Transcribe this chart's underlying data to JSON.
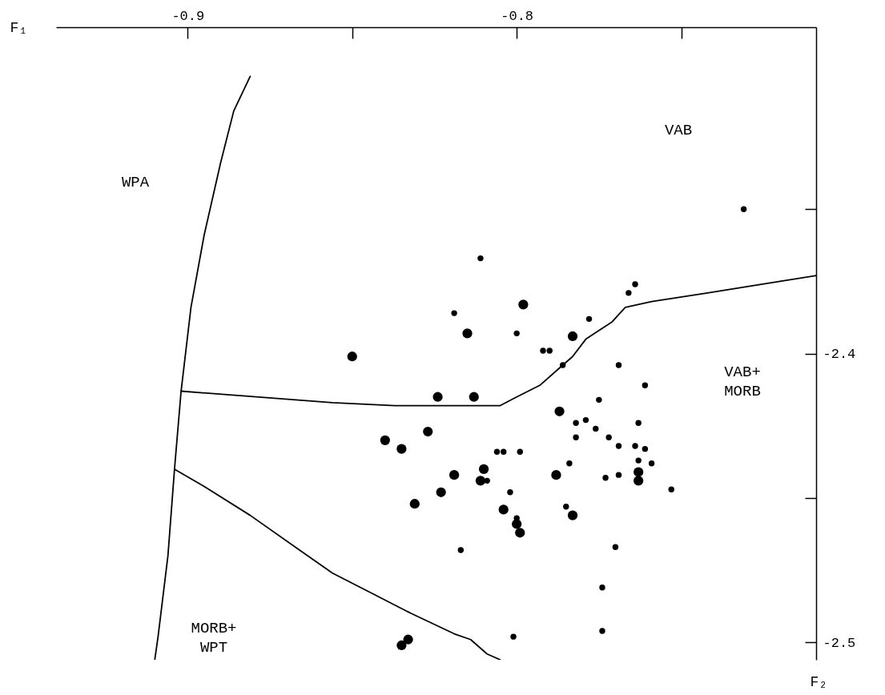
{
  "chart_data": {
    "type": "scatter",
    "xlabel": "F₁",
    "ylabel": "F₂",
    "xlim": [
      -0.94,
      -0.709
    ],
    "ylim": [
      -2.506,
      -2.287
    ],
    "xticks": [
      -0.9,
      {
        "value": -0.85,
        "label": null
      },
      -0.8,
      {
        "value": -0.75,
        "label": null
      }
    ],
    "yticks": [
      {
        "value": -2.35,
        "label": null
      },
      -2.4,
      {
        "value": -2.45,
        "label": null
      },
      -2.5
    ],
    "grid": false,
    "series": [
      {
        "color": "#000000",
        "marker": "circle",
        "x": [
          -0.811,
          -0.819,
          -0.8,
          -0.792,
          -0.79,
          -0.778,
          -0.764,
          -0.766,
          -0.786,
          -0.769,
          -0.761,
          -0.775,
          -0.782,
          -0.779,
          -0.763,
          -0.776,
          -0.782,
          -0.772,
          -0.769,
          -0.764,
          -0.761,
          -0.763,
          -0.759,
          -0.784,
          -0.773,
          -0.769,
          -0.753,
          -0.806,
          -0.804,
          -0.799,
          -0.809,
          -0.802,
          -0.8,
          -0.785,
          -0.817,
          -0.77,
          -0.774,
          -0.774,
          -0.801,
          -0.731
        ],
        "values": [
          -2.367,
          -2.386,
          -2.393,
          -2.399,
          -2.399,
          -2.388,
          -2.376,
          -2.379,
          -2.404,
          -2.404,
          -2.411,
          -2.416,
          -2.424,
          -2.423,
          -2.424,
          -2.426,
          -2.429,
          -2.429,
          -2.432,
          -2.432,
          -2.433,
          -2.437,
          -2.438,
          -2.438,
          -2.443,
          -2.442,
          -2.447,
          -2.434,
          -2.434,
          -2.434,
          -2.444,
          -2.448,
          -2.457,
          -2.453,
          -2.468,
          -2.467,
          -2.481,
          -2.496,
          -2.498,
          -2.35
        ]
      },
      {
        "color": "#000000",
        "marker": "circle",
        "x": [
          -0.798,
          -0.815,
          -0.85,
          -0.783,
          -0.824,
          -0.813,
          -0.787,
          -0.763,
          -0.763,
          -0.788,
          -0.84,
          -0.835,
          -0.827,
          -0.81,
          -0.811,
          -0.819,
          -0.823,
          -0.831,
          -0.804,
          -0.8,
          -0.799,
          -0.783,
          -0.833,
          -0.835
        ],
        "values": [
          -2.383,
          -2.393,
          -2.401,
          -2.394,
          -2.415,
          -2.415,
          -2.42,
          -2.441,
          -2.444,
          -2.442,
          -2.43,
          -2.433,
          -2.427,
          -2.44,
          -2.444,
          -2.442,
          -2.448,
          -2.452,
          -2.454,
          -2.459,
          -2.462,
          -2.456,
          -2.499,
          -2.501
        ]
      },
      {
        "type": "line",
        "color": "#000000",
        "x": [
          -0.881,
          -0.886,
          -0.89,
          -0.895,
          -0.899,
          -0.902,
          -0.904,
          -0.906,
          -0.909,
          -0.91
        ],
        "values": [
          -2.304,
          -2.316,
          -2.334,
          -2.359,
          -2.384,
          -2.413,
          -2.44,
          -2.47,
          -2.498,
          -2.506
        ]
      },
      {
        "type": "line",
        "color": "#000000",
        "x": [
          -0.902,
          -0.856,
          -0.837,
          -0.813,
          -0.805,
          -0.8,
          -0.793,
          -0.788,
          -0.783,
          -0.779,
          -0.771,
          -0.767,
          -0.759,
          -0.742,
          -0.72,
          -0.709
        ],
        "values": [
          -2.413,
          -2.417,
          -2.418,
          -2.418,
          -2.418,
          -2.415,
          -2.411,
          -2.406,
          -2.401,
          -2.395,
          -2.389,
          -2.384,
          -2.382,
          -2.379,
          -2.375,
          -2.373
        ]
      },
      {
        "type": "line",
        "color": "#000000",
        "x": [
          -0.904,
          -0.895,
          -0.881,
          -0.866,
          -0.856,
          -0.844,
          -0.832,
          -0.819,
          -0.814,
          -0.809,
          -0.805
        ],
        "values": [
          -2.44,
          -2.446,
          -2.456,
          -2.468,
          -2.476,
          -2.483,
          -2.49,
          -2.497,
          -2.499,
          -2.504,
          -2.506
        ]
      }
    ],
    "annotations": [
      "WPA",
      "VAB",
      "VAB+\nMORB",
      "MORB+\nWPT"
    ]
  }
}
